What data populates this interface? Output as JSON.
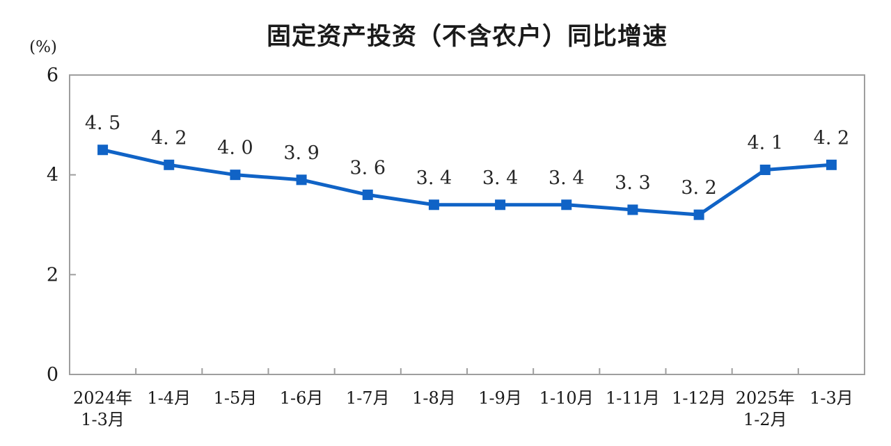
{
  "chart_data": {
    "type": "line",
    "title": "固定资产投资（不含农户）同比增速",
    "unit_label": "(%)",
    "categories": [
      "2024年\n1-3月",
      "1-4月",
      "1-5月",
      "1-6月",
      "1-7月",
      "1-8月",
      "1-9月",
      "1-10月",
      "1-11月",
      "1-12月",
      "2025年\n1-2月",
      "1-3月"
    ],
    "values": [
      4.5,
      4.2,
      4.0,
      3.9,
      3.6,
      3.4,
      3.4,
      3.4,
      3.3,
      3.2,
      4.1,
      4.2
    ],
    "point_labels": [
      "4. 5",
      "4. 2",
      "4. 0",
      "3. 9",
      "3. 6",
      "3. 4",
      "3. 4",
      "3. 4",
      "3. 3",
      "3. 2",
      "4. 1",
      "4. 2"
    ],
    "xlabel": "",
    "ylabel": "(%)",
    "y_ticks": [
      0,
      2,
      4,
      6
    ],
    "ylim": [
      0,
      6
    ],
    "grid": false,
    "legend_position": "none",
    "line_color": "#1063c6",
    "marker": "square",
    "frame_color": "#9e9e9e",
    "text_color": "#1a1a1a"
  }
}
